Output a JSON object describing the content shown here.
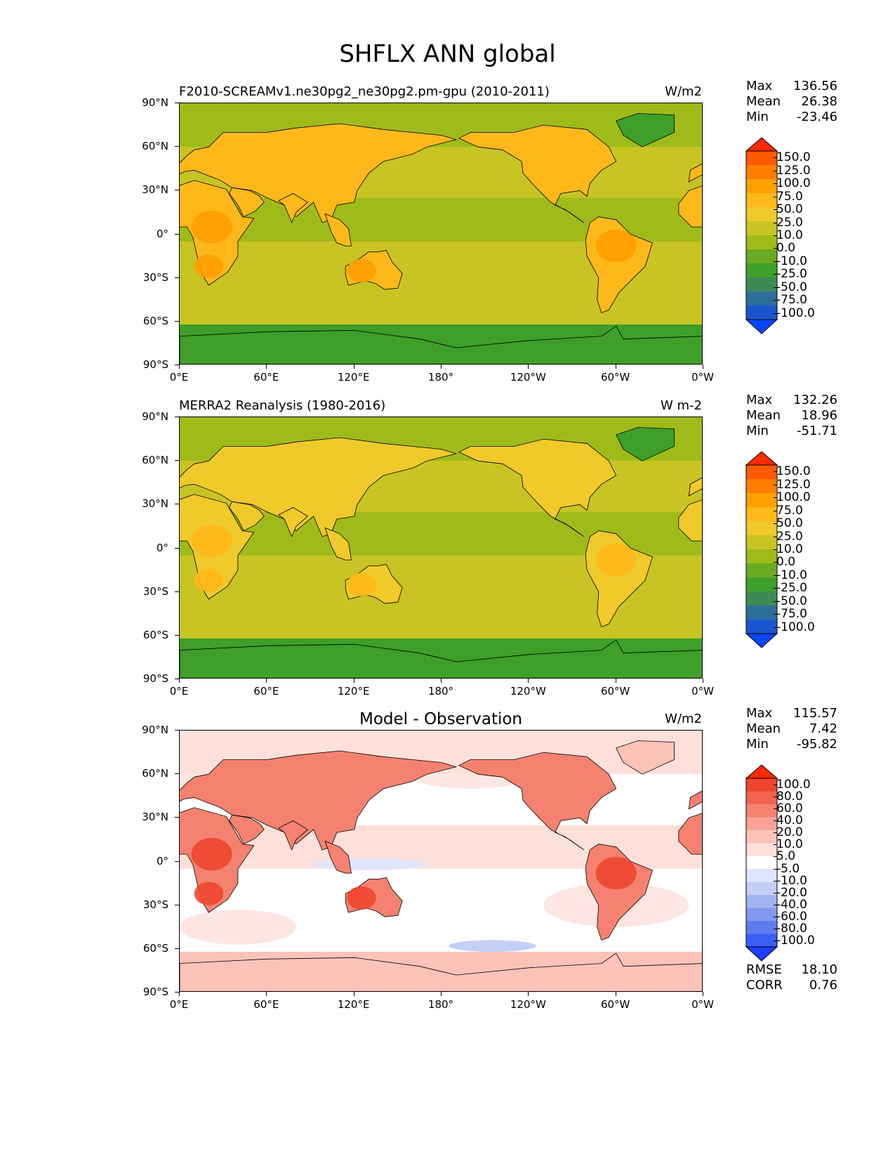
{
  "figure": {
    "title": "SHFLX ANN global"
  },
  "axes": {
    "lat_ticks": [
      "90°N",
      "60°N",
      "30°N",
      "0°",
      "30°S",
      "60°S",
      "90°S"
    ],
    "lon_ticks": [
      "0°E",
      "60°E",
      "120°E",
      "180°",
      "120°W",
      "60°W",
      "0°W"
    ]
  },
  "panels": [
    {
      "title": "F2010-SCREAMv1.ne30pg2_ne30pg2.pm-gpu (2010-2011)",
      "title_style": "left",
      "units": "W/m2",
      "stats": [
        {
          "label": "Max",
          "value": "136.56"
        },
        {
          "label": "Mean",
          "value": "26.38"
        },
        {
          "label": "Min",
          "value": "-23.46"
        }
      ],
      "colorbar": {
        "labels": [
          "150.0",
          "125.0",
          "100.0",
          "75.0",
          "50.0",
          "25.0",
          "10.0",
          "0.0",
          "-10.0",
          "-25.0",
          "-50.0",
          "-75.0",
          "-100.0"
        ],
        "colors": [
          "#ff2a00",
          "#ff5a00",
          "#ff7d00",
          "#ff9f00",
          "#ffb81a",
          "#f0c92a",
          "#c8c424",
          "#9fbb19",
          "#6aaa23",
          "#3e9f2a",
          "#3d8a57",
          "#2e6f9a",
          "#1a55d0",
          "#0a45ff"
        ]
      },
      "map_type": "field",
      "field_palette": {
        "ocean": "#c8c424",
        "ocean2": "#9fbb19",
        "land": "#ffb81a",
        "land_hot": "#ff9f00",
        "ice": "#3e9f2a"
      }
    },
    {
      "title": "MERRA2 Reanalysis (1980-2016)",
      "title_style": "left",
      "units": "W m-2",
      "stats": [
        {
          "label": "Max",
          "value": "132.26"
        },
        {
          "label": "Mean",
          "value": "18.96"
        },
        {
          "label": "Min",
          "value": "-51.71"
        }
      ],
      "colorbar": {
        "labels": [
          "150.0",
          "125.0",
          "100.0",
          "75.0",
          "50.0",
          "25.0",
          "10.0",
          "0.0",
          "-10.0",
          "-25.0",
          "-50.0",
          "-75.0",
          "-100.0"
        ],
        "colors": [
          "#ff2a00",
          "#ff5a00",
          "#ff7d00",
          "#ff9f00",
          "#ffb81a",
          "#f0c92a",
          "#c8c424",
          "#9fbb19",
          "#6aaa23",
          "#3e9f2a",
          "#3d8a57",
          "#2e6f9a",
          "#1a55d0",
          "#0a45ff"
        ]
      },
      "map_type": "field",
      "field_palette": {
        "ocean": "#c8c424",
        "ocean2": "#9fbb19",
        "land": "#f0c92a",
        "land_hot": "#ffb81a",
        "ice": "#3e9f2a"
      }
    },
    {
      "title": "Model - Observation",
      "title_style": "center",
      "units": "W/m2",
      "stats": [
        {
          "label": "Max",
          "value": "115.57"
        },
        {
          "label": "Mean",
          "value": "7.42"
        },
        {
          "label": "Min",
          "value": "-95.82"
        }
      ],
      "colorbar": {
        "labels": [
          "100.0",
          "80.0",
          "60.0",
          "40.0",
          "20.0",
          "10.0",
          "5.0",
          "-5.0",
          "-10.0",
          "-20.0",
          "-40.0",
          "-60.0",
          "-80.0",
          "-100.0"
        ],
        "colors": [
          "#ff2a00",
          "#f0452d",
          "#f26450",
          "#f58270",
          "#f8a395",
          "#fbc3b8",
          "#fde0da",
          "#ffffff",
          "#dfe6fb",
          "#c3cff7",
          "#a2b4f2",
          "#8399ee",
          "#5c7cf0",
          "#3a5ef5",
          "#1a3fff"
        ]
      },
      "map_type": "diff",
      "field_palette": {
        "ocean": "#ffffff",
        "ocean2": "#fde0da",
        "land": "#f58270",
        "land_hot": "#f0452d",
        "ice": "#fbc3b8"
      },
      "bottom_stats": [
        {
          "label": "RMSE",
          "value": "18.10"
        },
        {
          "label": "CORR",
          "value": "0.76"
        }
      ]
    }
  ],
  "chart_data": [
    {
      "type": "heatmap",
      "title": "F2010-SCREAMv1.ne30pg2_ne30pg2.pm-gpu (2010-2011)",
      "units": "W/m2",
      "xlim": [
        0,
        360
      ],
      "ylim": [
        -90,
        90
      ],
      "levels": [
        -100,
        -75,
        -50,
        -25,
        -10,
        0,
        10,
        25,
        50,
        75,
        100,
        125,
        150
      ],
      "max": 136.56,
      "mean": 26.38,
      "min": -23.46
    },
    {
      "type": "heatmap",
      "title": "MERRA2 Reanalysis (1980-2016)",
      "units": "W m-2",
      "xlim": [
        0,
        360
      ],
      "ylim": [
        -90,
        90
      ],
      "levels": [
        -100,
        -75,
        -50,
        -25,
        -10,
        0,
        10,
        25,
        50,
        75,
        100,
        125,
        150
      ],
      "max": 132.26,
      "mean": 18.96,
      "min": -51.71
    },
    {
      "type": "heatmap",
      "title": "Model - Observation",
      "units": "W/m2",
      "xlim": [
        0,
        360
      ],
      "ylim": [
        -90,
        90
      ],
      "levels": [
        -100,
        -80,
        -60,
        -40,
        -20,
        -10,
        -5,
        5,
        10,
        20,
        40,
        60,
        80,
        100
      ],
      "max": 115.57,
      "mean": 7.42,
      "min": -95.82,
      "rmse": 18.1,
      "corr": 0.76
    }
  ]
}
